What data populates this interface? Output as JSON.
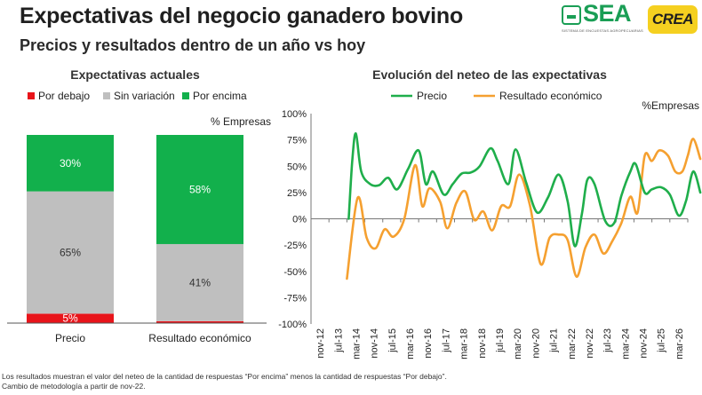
{
  "header": {
    "title": "Expectativas del negocio ganadero bovino",
    "subtitle": "Precios y resultados dentro de un año vs hoy"
  },
  "logos": {
    "sea_text": "SEA",
    "sea_tagline": "SISTEMA DE ENCUESTAS AGROPECUARIAS",
    "crea_text": "CREA"
  },
  "colors": {
    "below": "#e8141a",
    "same": "#bfbfbf",
    "above": "#12b04c",
    "precio_line": "#1fae4b",
    "resultado_line": "#f5a030"
  },
  "footnote": {
    "line1": "Los resultados muestran el valor del neteo de la cantidad de respuestas “Por encima” menos la cantidad de respuestas “Por debajo”.",
    "line2": "Cambio de metodología a partir de nov-22."
  },
  "chart_data": [
    {
      "type": "bar",
      "stacked": true,
      "title": "Expectativas actuales",
      "unit_label": "% Empresas",
      "categories": [
        "Precio",
        "Resultado económico"
      ],
      "series": [
        {
          "name": "Por debajo",
          "values": [
            5,
            1
          ],
          "labels": [
            "5%",
            ""
          ]
        },
        {
          "name": "Sin variación",
          "values": [
            65,
            41
          ],
          "labels": [
            "65%",
            "41%"
          ]
        },
        {
          "name": "Por encima",
          "values": [
            30,
            58
          ],
          "labels": [
            "30%",
            "58%"
          ]
        }
      ],
      "ylim": [
        0,
        100
      ],
      "legend": "top-left"
    },
    {
      "type": "line",
      "title": "Evolución del neteo de las expectativas",
      "unit_label": "%Empresas",
      "ylim": [
        -100,
        100
      ],
      "yticks": [
        100,
        75,
        50,
        25,
        0,
        -25,
        -50,
        -75,
        -100
      ],
      "ytick_labels": [
        "100%",
        "75%",
        "50%",
        "25%",
        "0%",
        "-25%",
        "-50%",
        "-75%",
        "-100%"
      ],
      "x_labels": [
        "nov-12",
        "jul-13",
        "mar-14",
        "nov-14",
        "jul-15",
        "mar-16",
        "nov-16",
        "jul-17",
        "mar-18",
        "nov-18",
        "jul-19",
        "mar-20",
        "nov-20",
        "jul-21",
        "mar-22",
        "nov-22",
        "jul-23",
        "mar-24",
        "nov-24",
        "jul-25",
        "mar-26"
      ],
      "legend": "top",
      "series": [
        {
          "name": "Precio",
          "end_label": "25%",
          "points": [
            [
              2.1,
              0
            ],
            [
              2.3,
              55
            ],
            [
              2.5,
              81
            ],
            [
              2.8,
              45
            ],
            [
              3.3,
              33
            ],
            [
              3.8,
              32
            ],
            [
              4.3,
              39
            ],
            [
              4.8,
              28
            ],
            [
              5.4,
              47
            ],
            [
              6.0,
              65
            ],
            [
              6.4,
              33
            ],
            [
              6.8,
              45
            ],
            [
              7.4,
              23
            ],
            [
              7.9,
              33
            ],
            [
              8.4,
              43
            ],
            [
              8.9,
              44
            ],
            [
              9.4,
              50
            ],
            [
              10.0,
              67
            ],
            [
              10.4,
              55
            ],
            [
              11.0,
              33
            ],
            [
              11.4,
              66
            ],
            [
              12.0,
              34
            ],
            [
              12.6,
              6
            ],
            [
              13.2,
              20
            ],
            [
              13.8,
              42
            ],
            [
              14.3,
              17
            ],
            [
              14.7,
              -26
            ],
            [
              15.1,
              5
            ],
            [
              15.4,
              37
            ],
            [
              15.8,
              33
            ],
            [
              16.4,
              -2
            ],
            [
              16.9,
              -4
            ],
            [
              17.3,
              22
            ],
            [
              17.8,
              45
            ],
            [
              18.1,
              52
            ],
            [
              18.6,
              25
            ],
            [
              19.0,
              28
            ],
            [
              19.5,
              30
            ],
            [
              20.0,
              23
            ],
            [
              20.5,
              3
            ],
            [
              20.9,
              17
            ],
            [
              21.3,
              45
            ],
            [
              21.7,
              25
            ]
          ]
        },
        {
          "name": "Resultado económico",
          "end_label": "57%",
          "points": [
            [
              2.0,
              -57
            ],
            [
              2.6,
              20
            ],
            [
              3.1,
              -18
            ],
            [
              3.6,
              -28
            ],
            [
              4.1,
              -10
            ],
            [
              4.6,
              -17
            ],
            [
              5.2,
              0
            ],
            [
              5.8,
              51
            ],
            [
              6.2,
              12
            ],
            [
              6.6,
              29
            ],
            [
              7.2,
              16
            ],
            [
              7.6,
              -9
            ],
            [
              8.1,
              15
            ],
            [
              8.6,
              26
            ],
            [
              9.1,
              -1
            ],
            [
              9.6,
              7
            ],
            [
              10.1,
              -11
            ],
            [
              10.6,
              12
            ],
            [
              11.1,
              12
            ],
            [
              11.6,
              42
            ],
            [
              12.2,
              13
            ],
            [
              12.8,
              -43
            ],
            [
              13.3,
              -18
            ],
            [
              13.8,
              -15
            ],
            [
              14.3,
              -20
            ],
            [
              14.8,
              -55
            ],
            [
              15.3,
              -27
            ],
            [
              15.8,
              -15
            ],
            [
              16.3,
              -33
            ],
            [
              16.8,
              -21
            ],
            [
              17.3,
              -4
            ],
            [
              17.8,
              21
            ],
            [
              18.2,
              6
            ],
            [
              18.6,
              60
            ],
            [
              19.0,
              55
            ],
            [
              19.4,
              65
            ],
            [
              19.9,
              60
            ],
            [
              20.3,
              45
            ],
            [
              20.7,
              45
            ],
            [
              21.0,
              60
            ],
            [
              21.3,
              76
            ],
            [
              21.7,
              57
            ]
          ]
        }
      ]
    }
  ]
}
